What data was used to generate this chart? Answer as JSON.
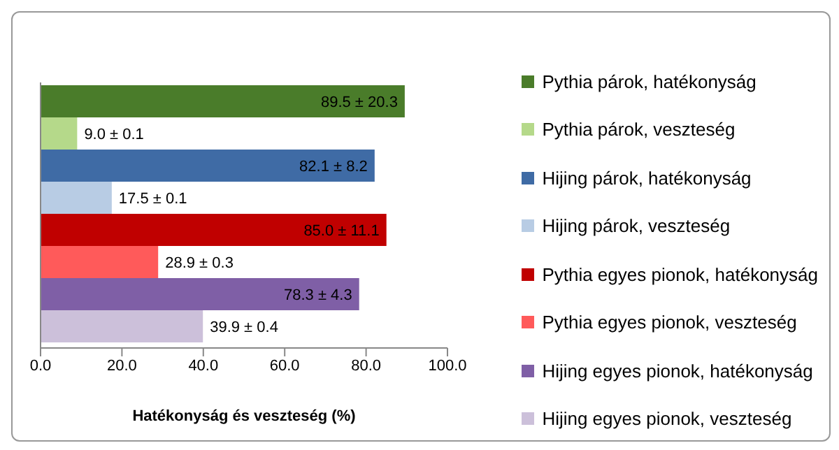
{
  "chart_data": {
    "type": "bar",
    "orientation": "horizontal",
    "xlabel": "Hatékonyság és veszteség (%)",
    "categories": [
      null
    ],
    "xlim": [
      0,
      100
    ],
    "xticks": [
      {
        "value": 0,
        "label": "0.0"
      },
      {
        "value": 20,
        "label": "20.0"
      },
      {
        "value": 40,
        "label": "40.0"
      },
      {
        "value": 60,
        "label": "60.0"
      },
      {
        "value": 80,
        "label": "80.0"
      },
      {
        "value": 100,
        "label": "100.0"
      }
    ],
    "legend": "right",
    "grid": false,
    "series": [
      {
        "name": "Pythia párok, hatékonyság",
        "color": "#4a7c2a",
        "values": [
          89.5
        ],
        "value_labels": [
          "89.5 ± 20.3"
        ]
      },
      {
        "name": "Pythia párok, veszteség",
        "color": "#b5d98a",
        "values": [
          9.0
        ],
        "value_labels": [
          "9.0 ± 0.1"
        ]
      },
      {
        "name": "Hijing párok, hatékonyság",
        "color": "#3f6ba5",
        "values": [
          82.1
        ],
        "value_labels": [
          "82.1 ± 8.2"
        ]
      },
      {
        "name": "Hijing párok, veszteség",
        "color": "#b8cce4",
        "values": [
          17.5
        ],
        "value_labels": [
          "17.5 ± 0.1"
        ]
      },
      {
        "name": "Pythia egyes pionok, hatékonyság",
        "color": "#c00000",
        "values": [
          85.0
        ],
        "value_labels": [
          "85.0 ± 11.1"
        ]
      },
      {
        "name": "Pythia egyes pionok, veszteség",
        "color": "#ff5a5a",
        "values": [
          28.9
        ],
        "value_labels": [
          "28.9 ± 0.3"
        ]
      },
      {
        "name": "Hijing egyes pionok, hatékonyság",
        "color": "#7f5fa6",
        "values": [
          78.3
        ],
        "value_labels": [
          "78.3 ± 4.3"
        ]
      },
      {
        "name": "Hijing egyes pionok, veszteség",
        "color": "#ccc0da",
        "values": [
          39.9
        ],
        "value_labels": [
          "39.9 ± 0.4"
        ]
      }
    ]
  }
}
